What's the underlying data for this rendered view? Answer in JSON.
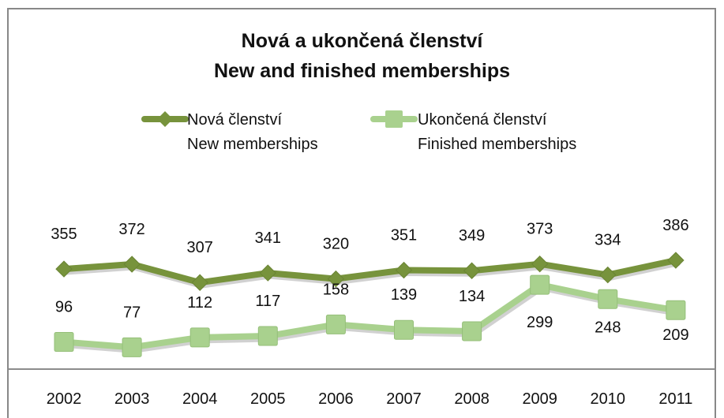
{
  "chart_data": {
    "type": "line",
    "title": "Nová a ukončená členství",
    "subtitle": "New and finished memberships",
    "categories": [
      "2002",
      "2003",
      "2004",
      "2005",
      "2006",
      "2007",
      "2008",
      "2009",
      "2010",
      "2011"
    ],
    "series": [
      {
        "name": "Nová členství",
        "name_en": "New memberships",
        "values": [
          355,
          372,
          307,
          341,
          320,
          351,
          349,
          373,
          334,
          386
        ],
        "color": "#77933C",
        "marker": "diamond"
      },
      {
        "name": "Ukončená členství",
        "name_en": "Finished memberships",
        "values": [
          96,
          77,
          112,
          117,
          158,
          139,
          134,
          299,
          248,
          209
        ],
        "color": "#A9D18E",
        "marker": "square"
      }
    ],
    "legend": "top",
    "grid": false
  }
}
